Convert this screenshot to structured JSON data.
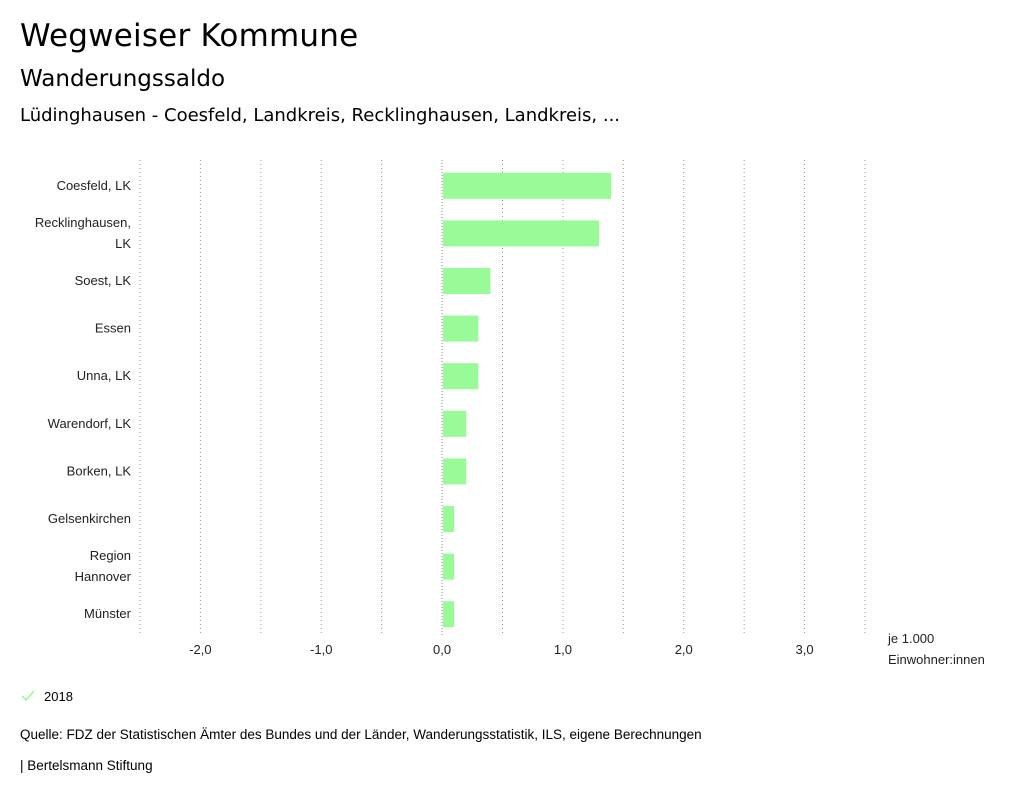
{
  "header": {
    "title": "Wegweiser Kommune",
    "subtitle": "Wanderungssaldo",
    "region": "Lüdinghausen - Coesfeld, Landkreis, Recklinghausen, Landkreis, ..."
  },
  "chart_data": {
    "type": "bar",
    "orientation": "horizontal",
    "categories": [
      [
        "Coesfeld, LK"
      ],
      [
        "Recklinghausen,",
        "LK"
      ],
      [
        "Soest, LK"
      ],
      [
        "Essen"
      ],
      [
        "Unna, LK"
      ],
      [
        "Warendorf, LK"
      ],
      [
        "Borken, LK"
      ],
      [
        "Gelsenkirchen"
      ],
      [
        "Region",
        "Hannover"
      ],
      [
        "Münster"
      ]
    ],
    "series": [
      {
        "name": "2018",
        "values": [
          1.4,
          1.3,
          0.4,
          0.3,
          0.3,
          0.2,
          0.2,
          0.1,
          0.1,
          0.1
        ]
      }
    ],
    "xlim": [
      -2.5,
      3.5
    ],
    "xticks": [
      -2,
      -1,
      0,
      1,
      2,
      3
    ],
    "xtick_labels": [
      "-2,0",
      "-1,0",
      "0,0",
      "1,0",
      "2,0",
      "3,0"
    ],
    "xlabel_lines": [
      "je 1.000",
      "Einwohner:innen"
    ],
    "grid": "vertical dotted",
    "bar_color": "#98fb98"
  },
  "legend": {
    "label": "2018",
    "color": "#98fb98"
  },
  "footer": {
    "source": "Quelle: FDZ der Statistischen Ämter des Bundes und der Länder, Wanderungsstatistik, ILS, eigene Berechnungen",
    "publisher": "| Bertelsmann Stiftung"
  }
}
